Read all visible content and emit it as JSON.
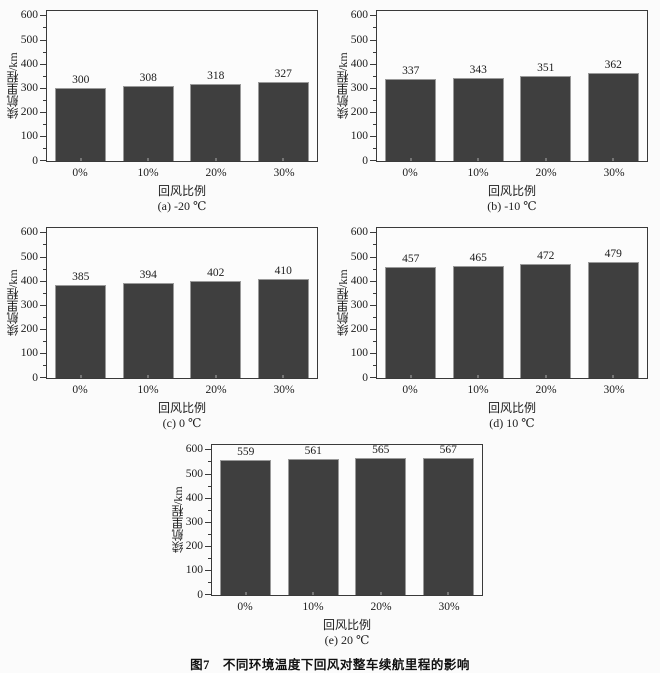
{
  "figure": {
    "caption": "图7　不同环境温度下回风对整车续航里程的影响"
  },
  "colors": {
    "bar_fill": "#3f3f3f",
    "bar_edge": "#9a9a9a",
    "axis": "#3a3a3a",
    "background": "#fbfbfb",
    "text": "#1c1c1c"
  },
  "chart_data": [
    {
      "type": "bar",
      "id": "a",
      "caption": "(a) -20 ℃",
      "categories": [
        "0%",
        "10%",
        "20%",
        "30%"
      ],
      "values": [
        300,
        308,
        318,
        327
      ],
      "xlabel": "回风比例",
      "ylabel": "续航里程/km",
      "ylim": [
        0,
        620
      ],
      "yticks": [
        0,
        100,
        200,
        300,
        400,
        500,
        600
      ],
      "minor_tick_step": 50,
      "grid": false,
      "legend": "none"
    },
    {
      "type": "bar",
      "id": "b",
      "caption": "(b) -10 ℃",
      "categories": [
        "0%",
        "10%",
        "20%",
        "30%"
      ],
      "values": [
        337,
        343,
        351,
        362
      ],
      "xlabel": "回风比例",
      "ylabel": "续航里程/km",
      "ylim": [
        0,
        620
      ],
      "yticks": [
        0,
        100,
        200,
        300,
        400,
        500,
        600
      ],
      "minor_tick_step": 50,
      "grid": false,
      "legend": "none"
    },
    {
      "type": "bar",
      "id": "c",
      "caption": "(c) 0 ℃",
      "categories": [
        "0%",
        "10%",
        "20%",
        "30%"
      ],
      "values": [
        385,
        394,
        402,
        410
      ],
      "xlabel": "回风比例",
      "ylabel": "续航里程/km",
      "ylim": [
        0,
        620
      ],
      "yticks": [
        0,
        100,
        200,
        300,
        400,
        500,
        600
      ],
      "minor_tick_step": 50,
      "grid": false,
      "legend": "none"
    },
    {
      "type": "bar",
      "id": "d",
      "caption": "(d) 10 ℃",
      "categories": [
        "0%",
        "10%",
        "20%",
        "30%"
      ],
      "values": [
        457,
        465,
        472,
        479
      ],
      "xlabel": "回风比例",
      "ylabel": "续航里程/km",
      "ylim": [
        0,
        620
      ],
      "yticks": [
        0,
        100,
        200,
        300,
        400,
        500,
        600
      ],
      "minor_tick_step": 50,
      "grid": false,
      "legend": "none"
    },
    {
      "type": "bar",
      "id": "e",
      "caption": "(e) 20 ℃",
      "categories": [
        "0%",
        "10%",
        "20%",
        "30%"
      ],
      "values": [
        559,
        561,
        565,
        567
      ],
      "xlabel": "回风比例",
      "ylabel": "续航里程/km",
      "ylim": [
        0,
        620
      ],
      "yticks": [
        0,
        100,
        200,
        300,
        400,
        500,
        600
      ],
      "minor_tick_step": 50,
      "grid": false,
      "legend": "none"
    }
  ]
}
